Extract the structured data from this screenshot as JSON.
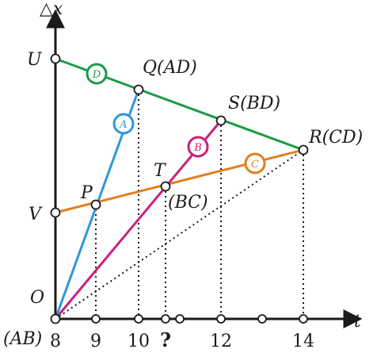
{
  "axes": {
    "y_label": "△x",
    "x_label": "t",
    "origin_label": "O",
    "origin_sub_label": "(AB)",
    "x_ticks": [
      "8",
      "9",
      "10",
      "?",
      "12",
      "14"
    ]
  },
  "points": {
    "U": "U",
    "V": "V",
    "P": "P",
    "Q": "Q(AD)",
    "S": "S(BD)",
    "R": "R(CD)",
    "T": "T",
    "BC": "(BC)"
  },
  "line_labels": {
    "A": "A",
    "B": "B",
    "C": "C",
    "D": "D"
  },
  "colors": {
    "A": "#2e97d8",
    "B": "#cc1f7a",
    "C": "#e0801e",
    "D": "#1f9a4a",
    "axis": "#1a1a1a"
  }
}
